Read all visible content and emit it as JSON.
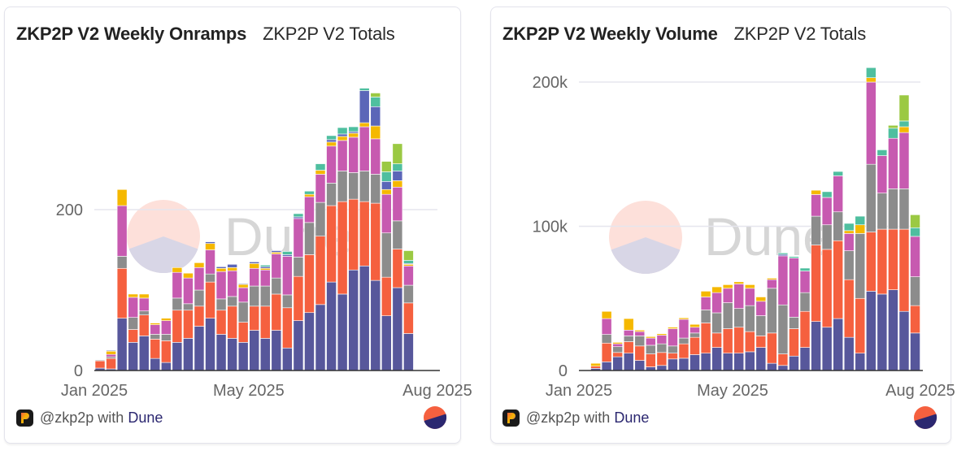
{
  "series_colors": {
    "s1": "#57579b",
    "s2": "#f5603f",
    "s3": "#8c8c8c",
    "s4": "#c75ab0",
    "s5": "#f5b800",
    "s6": "#5b66b8",
    "s7": "#4fbf9f",
    "s8": "#9bc943"
  },
  "watermark": {
    "text": "Dune",
    "pie_colors": [
      "#fde0da",
      "#d8d6e6"
    ]
  },
  "cards": [
    {
      "title": "ZKP2P V2 Weekly Onramps",
      "subtitle": "ZKP2P V2 Totals",
      "footer_user": "@zkp2p with",
      "footer_brand": "Dune"
    },
    {
      "title": "ZKP2P V2 Weekly Volume",
      "subtitle": "ZKP2P V2 Totals",
      "footer_user": "@zkp2p with",
      "footer_brand": "Dune"
    }
  ],
  "chart_data": [
    {
      "type": "bar",
      "stacked": true,
      "title": "ZKP2P V2 Weekly Onramps",
      "subtitle": "ZKP2P V2 Totals",
      "xlabel": "",
      "ylabel": "",
      "x_tick_labels": [
        "Jan 2025",
        "May 2025",
        "Aug 2025"
      ],
      "y_ticks": [
        0,
        200
      ],
      "y_tick_labels": [
        "0",
        "200"
      ],
      "ylim": [
        0,
        400
      ],
      "grid": true,
      "legend": "none",
      "categories_count": 31,
      "series": [
        {
          "name": "s1",
          "values": [
            3,
            2,
            65,
            35,
            43,
            15,
            10,
            35,
            40,
            55,
            65,
            45,
            40,
            35,
            50,
            40,
            50,
            28,
            62,
            72,
            82,
            110,
            95,
            125,
            130,
            112,
            68,
            103,
            46,
            0,
            0
          ]
        },
        {
          "name": "s2",
          "values": [
            9,
            13,
            62,
            16,
            26,
            24,
            27,
            40,
            35,
            25,
            45,
            30,
            40,
            25,
            30,
            40,
            45,
            50,
            55,
            72,
            85,
            95,
            115,
            88,
            80,
            96,
            48,
            48,
            38,
            0,
            0
          ]
        },
        {
          "name": "s3",
          "values": [
            1,
            2,
            15,
            15,
            5,
            6,
            8,
            15,
            8,
            20,
            10,
            14,
            12,
            25,
            25,
            25,
            20,
            16,
            24,
            40,
            42,
            28,
            38,
            33,
            38,
            36,
            55,
            35,
            22,
            0,
            0
          ]
        },
        {
          "name": "s4",
          "values": [
            0,
            3,
            63,
            25,
            16,
            12,
            17,
            32,
            32,
            28,
            30,
            34,
            32,
            18,
            22,
            20,
            30,
            48,
            48,
            32,
            35,
            46,
            38,
            44,
            55,
            44,
            48,
            42,
            24,
            0,
            0
          ]
        },
        {
          "name": "s5",
          "values": [
            0,
            4,
            20,
            4,
            5,
            2,
            3,
            6,
            6,
            6,
            8,
            4,
            4,
            4,
            6,
            2,
            2,
            0,
            0,
            3,
            5,
            5,
            5,
            5,
            5,
            16,
            6,
            8,
            2,
            0,
            0
          ]
        },
        {
          "name": "s6",
          "values": [
            0,
            1,
            0,
            0,
            0,
            0,
            0,
            0,
            0,
            0,
            2,
            2,
            4,
            1,
            2,
            2,
            2,
            2,
            2,
            0,
            0,
            3,
            3,
            2,
            40,
            24,
            10,
            12,
            1,
            0,
            0
          ]
        },
        {
          "name": "s7",
          "values": [
            0,
            0,
            0,
            0,
            0,
            0,
            0,
            0,
            0,
            0,
            0,
            0,
            0,
            0,
            0,
            2,
            0,
            4,
            4,
            4,
            8,
            5,
            8,
            6,
            3,
            12,
            12,
            9,
            4,
            0,
            0
          ]
        },
        {
          "name": "s8",
          "values": [
            0,
            0,
            0,
            0,
            0,
            0,
            0,
            0,
            0,
            0,
            0,
            0,
            0,
            0,
            0,
            0,
            0,
            0,
            0,
            0,
            0,
            0,
            0,
            0,
            0,
            5,
            13,
            25,
            12,
            0,
            0
          ]
        }
      ]
    },
    {
      "type": "bar",
      "stacked": true,
      "title": "ZKP2P V2 Weekly Volume",
      "subtitle": "ZKP2P V2 Totals",
      "xlabel": "",
      "ylabel": "",
      "x_tick_labels": [
        "Jan 2025",
        "May 2025",
        "Aug 2025"
      ],
      "y_ticks": [
        0,
        100000,
        200000
      ],
      "y_tick_labels": [
        "0",
        "100k",
        "200k"
      ],
      "ylim": [
        0,
        220000
      ],
      "grid": true,
      "legend": "none",
      "categories_count": 31,
      "series": [
        {
          "name": "s1",
          "values": [
            0,
            1500,
            6000,
            9500,
            12000,
            7000,
            2500,
            3500,
            8000,
            8500,
            11000,
            12000,
            16000,
            12000,
            12000,
            13000,
            16000,
            5000,
            3500,
            10000,
            16000,
            34000,
            30000,
            36000,
            23000,
            12000,
            55000,
            53000,
            56000,
            41000,
            26000
          ]
        },
        {
          "name": "s2",
          "values": [
            0,
            1500,
            13000,
            3000,
            8000,
            10000,
            9000,
            9000,
            4000,
            10000,
            12000,
            21000,
            10000,
            17000,
            18000,
            14000,
            8000,
            21000,
            8000,
            19000,
            25000,
            53000,
            54000,
            54000,
            40000,
            38000,
            41000,
            45000,
            42000,
            57000,
            19000
          ]
        },
        {
          "name": "s3",
          "values": [
            0,
            0,
            6000,
            4000,
            4000,
            7000,
            6000,
            6000,
            5000,
            4000,
            3000,
            9000,
            14000,
            18000,
            13000,
            18000,
            14000,
            31000,
            34000,
            8000,
            13000,
            20000,
            17000,
            20000,
            20000,
            45000,
            47000,
            25000,
            28000,
            28000,
            20000
          ]
        },
        {
          "name": "s4",
          "values": [
            0,
            0,
            11000,
            2000,
            4000,
            3000,
            5000,
            6000,
            12000,
            13000,
            4000,
            9000,
            14000,
            10000,
            17000,
            12000,
            10000,
            6000,
            34000,
            41000,
            15000,
            15000,
            19000,
            25000,
            12000,
            0,
            57000,
            26000,
            35000,
            39000,
            28000
          ]
        },
        {
          "name": "s5",
          "values": [
            0,
            2000,
            5000,
            1000,
            8000,
            1000,
            1000,
            1000,
            1000,
            1000,
            2000,
            4000,
            4000,
            2500,
            1500,
            2500,
            3000,
            1000,
            0,
            0,
            0,
            3000,
            0,
            0,
            2000,
            6000,
            3000,
            0,
            0,
            4000,
            0
          ]
        },
        {
          "name": "s6",
          "values": [
            0,
            0,
            0,
            0,
            0,
            0,
            0,
            0,
            0,
            0,
            0,
            0,
            0,
            0,
            0,
            0,
            0,
            0,
            1000,
            0,
            0,
            0,
            0,
            0,
            0,
            0,
            0,
            0,
            0,
            0,
            0
          ]
        },
        {
          "name": "s7",
          "values": [
            0,
            0,
            0,
            0,
            0,
            0,
            0,
            0,
            0,
            0,
            0,
            0,
            0,
            0,
            0,
            0,
            0,
            0,
            1000,
            1000,
            2000,
            0,
            4000,
            3000,
            5000,
            6000,
            7000,
            4000,
            7000,
            4000,
            6000
          ]
        },
        {
          "name": "s8",
          "values": [
            0,
            0,
            0,
            0,
            0,
            0,
            0,
            0,
            0,
            0,
            0,
            0,
            0,
            0,
            0,
            0,
            0,
            0,
            0,
            0,
            0,
            0,
            0,
            0,
            0,
            0,
            0,
            0,
            2000,
            18000,
            9000
          ]
        }
      ]
    }
  ]
}
